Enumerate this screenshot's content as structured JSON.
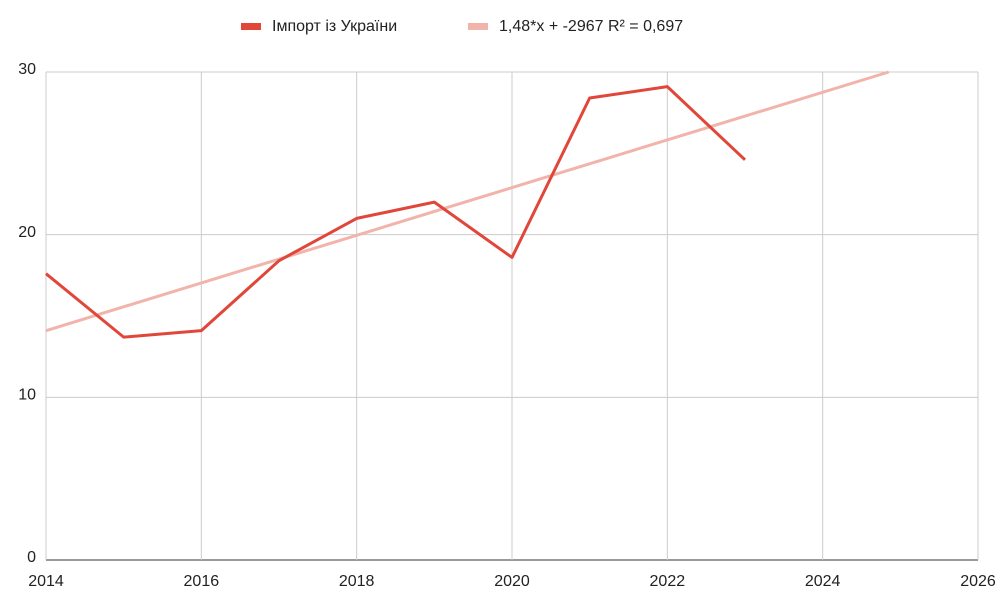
{
  "chart_data": {
    "type": "line",
    "x": [
      2014,
      2015,
      2016,
      2017,
      2018,
      2019,
      2020,
      2021,
      2022,
      2023
    ],
    "series": [
      {
        "name": "Імпорт із України",
        "color": "#e0473a",
        "values": [
          17.6,
          13.7,
          14.1,
          18.4,
          21.0,
          22.0,
          18.6,
          28.4,
          29.1,
          24.6
        ]
      },
      {
        "name": "1,48*x + -2967 R² = 0,697",
        "color": "#f2b3ab",
        "x": [
          2014,
          2024.85
        ],
        "values": [
          14.1,
          30
        ]
      }
    ],
    "xlim": [
      2014,
      2026
    ],
    "xticks": [
      2014,
      2016,
      2018,
      2020,
      2022,
      2024,
      2026
    ],
    "ylim": [
      0,
      30
    ],
    "yticks": [
      0,
      10,
      20,
      30
    ],
    "grid": true,
    "legend": "top"
  }
}
